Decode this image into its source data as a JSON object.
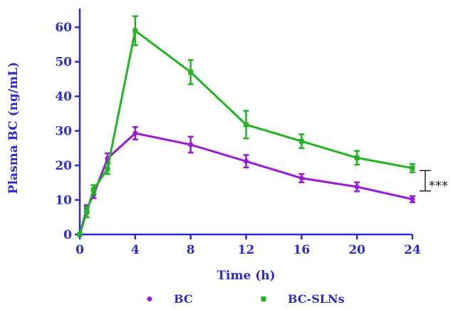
{
  "chart_data": {
    "type": "line",
    "xlabel": "Time (h)",
    "ylabel": "Plasma BC (ng/mL)",
    "xlim": [
      0,
      24
    ],
    "ylim": [
      0,
      65
    ],
    "xticks": [
      0,
      4,
      8,
      12,
      16,
      20,
      24
    ],
    "yticks": [
      0,
      10,
      20,
      30,
      40,
      50,
      60
    ],
    "grid": false,
    "legend_position": "bottom",
    "series": [
      {
        "name": "BC",
        "color": "#9b18d6",
        "marker": "circle",
        "x": [
          0,
          0.5,
          1,
          2,
          4,
          8,
          12,
          16,
          20,
          24
        ],
        "y": [
          0,
          7.5,
          11.5,
          22,
          29.3,
          26,
          21.2,
          16.3,
          13.8,
          10.2
        ],
        "err": [
          0,
          1,
          1,
          1.5,
          1.8,
          2.3,
          1.8,
          1.2,
          1.3,
          0.9
        ]
      },
      {
        "name": "BC-SLNs",
        "color": "#1fb51f",
        "marker": "square",
        "x": [
          0,
          0.5,
          1,
          2,
          4,
          8,
          12,
          16,
          20,
          24
        ],
        "y": [
          0,
          6.5,
          13,
          19,
          59,
          47,
          31.8,
          27,
          22.2,
          19.2
        ],
        "err": [
          0,
          1.5,
          1.3,
          1.5,
          4.2,
          3.5,
          4,
          2,
          2,
          1.2
        ]
      }
    ],
    "annotation": {
      "text": "***",
      "from_y": 18.5,
      "to_y": 12.6,
      "at_x": 24
    }
  }
}
